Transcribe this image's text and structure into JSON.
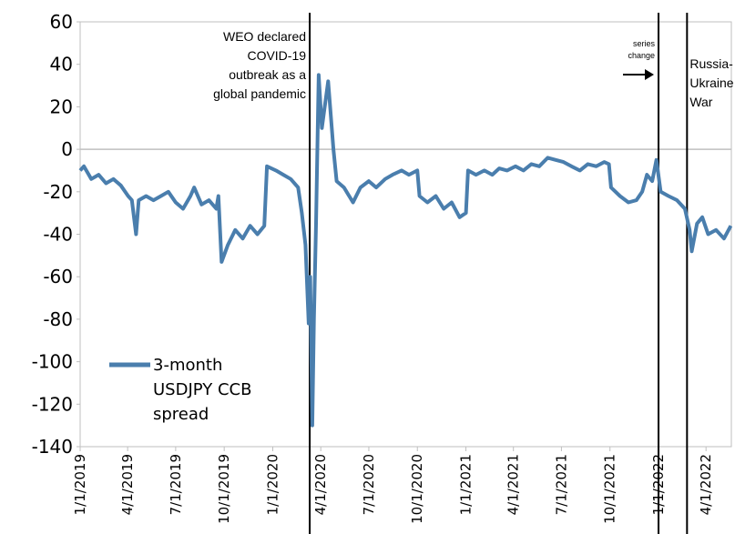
{
  "chart_data": {
    "type": "line",
    "x": [
      "1/1/2019",
      "1/8/2019",
      "1/22/2019",
      "2/5/2019",
      "2/19/2019",
      "3/5/2019",
      "3/19/2019",
      "4/2/2019",
      "4/9/2019",
      "4/17/2019",
      "4/22/2019",
      "5/6/2019",
      "5/20/2019",
      "6/3/2019",
      "6/17/2019",
      "7/1/2019",
      "7/15/2019",
      "7/29/2019",
      "8/5/2019",
      "8/19/2019",
      "9/2/2019",
      "9/16/2019",
      "9/20/2019",
      "9/26/2019",
      "10/8/2019",
      "10/22/2019",
      "11/5/2019",
      "11/19/2019",
      "12/3/2019",
      "12/16/2019",
      "12/21/2019",
      "1/7/2020",
      "1/21/2020",
      "2/4/2020",
      "2/18/2020",
      "2/25/2020",
      "3/3/2020",
      "3/9/2020",
      "3/12/2020",
      "3/16/2020",
      "3/19/2020",
      "3/23/2020",
      "3/28/2020",
      "4/3/2020",
      "4/15/2020",
      "4/25/2020",
      "5/1/2020",
      "5/15/2020",
      "6/1/2020",
      "6/15/2020",
      "7/1/2020",
      "7/15/2020",
      "8/1/2020",
      "8/15/2020",
      "9/1/2020",
      "9/15/2020",
      "10/1/2020",
      "10/5/2020",
      "10/20/2020",
      "11/5/2020",
      "11/20/2020",
      "12/5/2020",
      "12/20/2020",
      "1/1/2021",
      "1/5/2021",
      "1/20/2021",
      "2/5/2021",
      "2/20/2021",
      "3/5/2021",
      "3/20/2021",
      "4/5/2021",
      "4/20/2021",
      "5/5/2021",
      "5/20/2021",
      "6/5/2021",
      "6/20/2021",
      "7/5/2021",
      "7/20/2021",
      "8/5/2021",
      "8/20/2021",
      "9/5/2021",
      "9/20/2021",
      "9/29/2021",
      "10/3/2021",
      "10/20/2021",
      "11/5/2021",
      "11/20/2021",
      "12/1/2021",
      "12/10/2021",
      "12/20/2021",
      "12/28/2021",
      "1/5/2022",
      "1/20/2022",
      "2/5/2022",
      "2/20/2022",
      "3/1/2022",
      "3/5/2022",
      "3/15/2022",
      "3/25/2022",
      "4/5/2022",
      "4/20/2022",
      "5/5/2022",
      "5/18/2022"
    ],
    "series": [
      {
        "name": "3-month USDJPY CCB spread",
        "color": "#4a7ead",
        "values": [
          -10,
          -8,
          -14,
          -12,
          -16,
          -14,
          -17,
          -22,
          -24,
          -40,
          -24,
          -22,
          -24,
          -22,
          -20,
          -25,
          -28,
          -22,
          -18,
          -26,
          -24,
          -28,
          -22,
          -53,
          -45,
          -38,
          -42,
          -36,
          -40,
          -36,
          -8,
          -10,
          -12,
          -14,
          -18,
          -30,
          -45,
          -82,
          -60,
          -130,
          -80,
          -35,
          35,
          10,
          32,
          0,
          -15,
          -18,
          -25,
          -18,
          -15,
          -18,
          -14,
          -12,
          -10,
          -12,
          -10,
          -22,
          -25,
          -22,
          -28,
          -25,
          -32,
          -30,
          -10,
          -12,
          -10,
          -12,
          -9,
          -10,
          -8,
          -10,
          -7,
          -8,
          -4,
          -5,
          -6,
          -8,
          -10,
          -7,
          -8,
          -6,
          -7,
          -18,
          -22,
          -25,
          -24,
          -20,
          -12,
          -15,
          -5,
          -20,
          -22,
          -24,
          -28,
          -38,
          -48,
          -35,
          -32,
          -40,
          -38,
          -42,
          -36
        ]
      }
    ],
    "xlim": [
      "1/1/2019",
      "5/19/2022"
    ],
    "xticks": [
      "1/1/2019",
      "4/1/2019",
      "7/1/2019",
      "10/1/2019",
      "1/1/2020",
      "4/1/2020",
      "7/1/2020",
      "10/1/2020",
      "1/1/2021",
      "4/1/2021",
      "7/1/2021",
      "10/1/2021",
      "1/1/2022",
      "4/1/2022"
    ],
    "ylim": [
      -140,
      60
    ],
    "yticks": [
      -140,
      -120,
      -100,
      -80,
      -60,
      -40,
      -20,
      0,
      20,
      40,
      60
    ],
    "annotations": [
      {
        "text": "WEO declared COVID-19 outbreak as a global pandemic",
        "x": "3/11/2020"
      },
      {
        "text": "series change",
        "x": "1/1/2022"
      },
      {
        "text": "Russia-Ukraine War",
        "x": "2/24/2022"
      }
    ]
  }
}
